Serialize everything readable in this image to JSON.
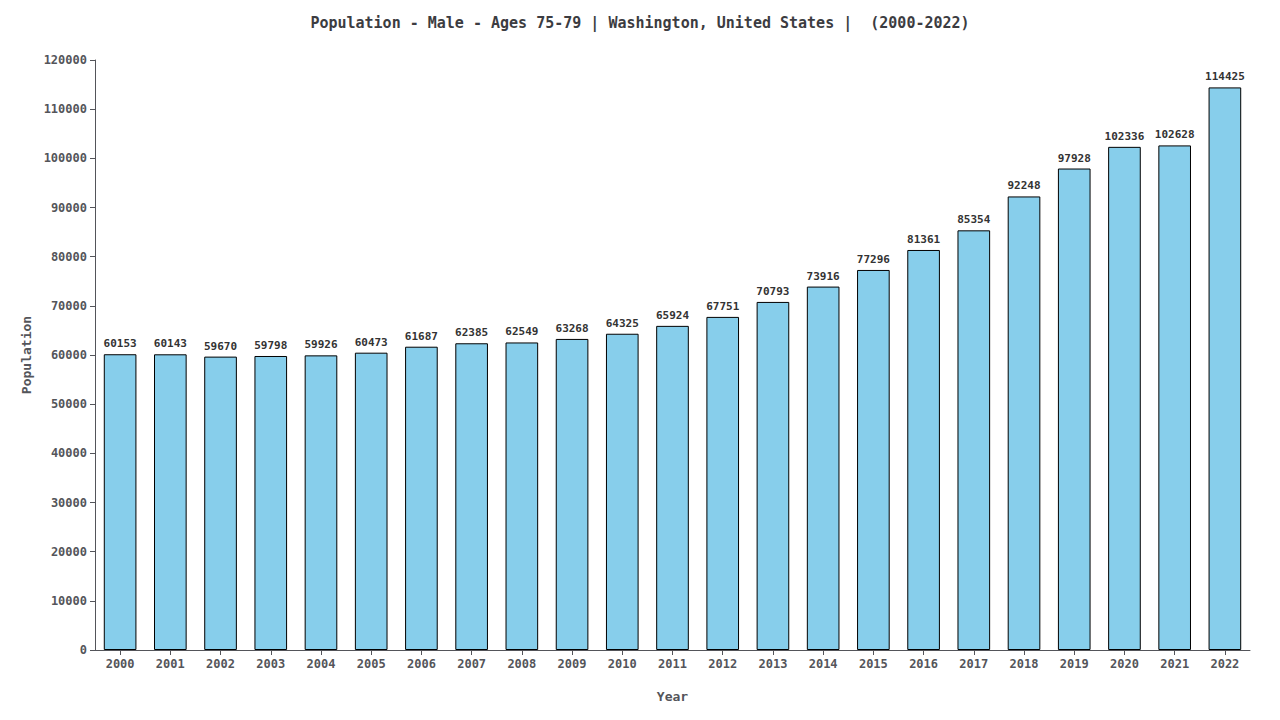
{
  "chart_data": {
    "type": "bar",
    "title": "Population - Male - Ages 75-79 | Washington, United States |  (2000-2022)",
    "xlabel": "Year",
    "ylabel": "Population",
    "categories": [
      "2000",
      "2001",
      "2002",
      "2003",
      "2004",
      "2005",
      "2006",
      "2007",
      "2008",
      "2009",
      "2010",
      "2011",
      "2012",
      "2013",
      "2014",
      "2015",
      "2016",
      "2017",
      "2018",
      "2019",
      "2020",
      "2021",
      "2022"
    ],
    "values": [
      60153,
      60143,
      59670,
      59798,
      59926,
      60473,
      61687,
      62385,
      62549,
      63268,
      64325,
      65924,
      67751,
      70793,
      73916,
      77296,
      81361,
      85354,
      92248,
      97928,
      102336,
      102628,
      114425
    ],
    "color": "#87CEEB",
    "ylim": [
      0,
      120000
    ],
    "yticks": [
      0,
      10000,
      20000,
      30000,
      40000,
      50000,
      60000,
      70000,
      80000,
      90000,
      100000,
      110000,
      120000
    ],
    "grid": false,
    "data_labels": true
  }
}
